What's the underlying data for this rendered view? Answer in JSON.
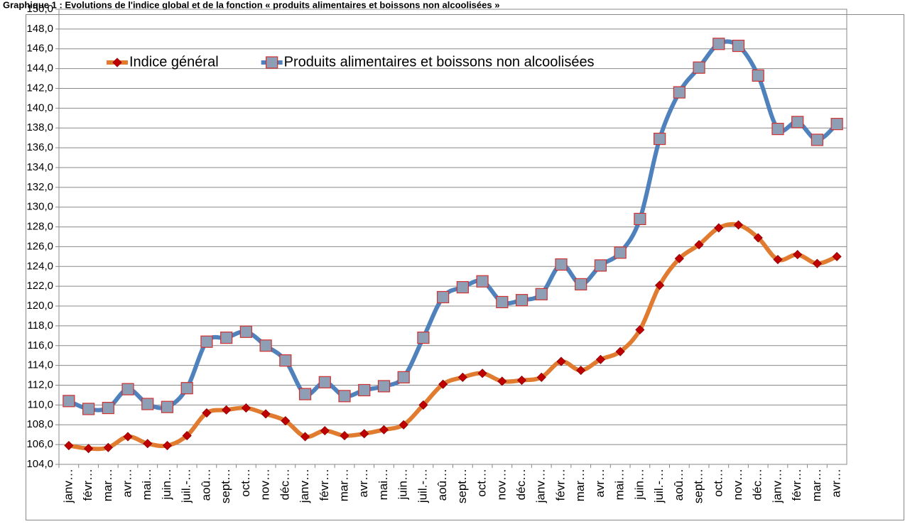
{
  "chart_data": {
    "type": "line",
    "title": "Graphique 1 : Evolutions de l'indice global et de la fonction « produits alimentaires et boissons non alcoolisées »",
    "categories": [
      "janv…",
      "févr…",
      "mar…",
      "avr…",
      "mai…",
      "juin…",
      "juil.-…",
      "aoû…",
      "sept…",
      "oct…",
      "nov…",
      "déc…",
      "janv…",
      "févr…",
      "mar…",
      "avr…",
      "mai…",
      "juin…",
      "juil.-…",
      "aoû…",
      "sept…",
      "oct…",
      "nov…",
      "déc…",
      "janv…",
      "févr…",
      "mar…",
      "avr…",
      "mai…",
      "juin…",
      "juil.-…",
      "aoû…",
      "sept…",
      "oct…",
      "nov…",
      "déc…",
      "janv…",
      "févr…",
      "mar…",
      "avr…"
    ],
    "series": [
      {
        "name": "Indice général",
        "color": "#e07b30",
        "marker": "diamond",
        "marker_color": "#c00000",
        "values": [
          105.9,
          105.6,
          105.7,
          106.8,
          106.1,
          105.9,
          106.9,
          109.2,
          109.5,
          109.7,
          109.1,
          108.4,
          106.8,
          107.4,
          106.9,
          107.1,
          107.5,
          108.0,
          110.0,
          112.1,
          112.8,
          113.2,
          112.4,
          112.5,
          112.8,
          114.4,
          113.5,
          114.6,
          115.4,
          117.6,
          122.1,
          124.8,
          126.2,
          127.9,
          128.2,
          126.9,
          124.7,
          125.2,
          124.3,
          125.0
        ]
      },
      {
        "name": "Produits alimentaires et boissons non alcoolisées",
        "color": "#4f81bd",
        "marker": "square",
        "marker_color": "#8e9fb5",
        "values": [
          110.4,
          109.6,
          109.7,
          111.6,
          110.1,
          109.8,
          111.7,
          116.4,
          116.8,
          117.4,
          116.0,
          114.5,
          111.1,
          112.3,
          110.9,
          111.5,
          111.9,
          112.8,
          116.8,
          120.9,
          121.9,
          122.5,
          120.4,
          120.6,
          121.2,
          124.2,
          122.2,
          124.1,
          125.4,
          128.8,
          136.9,
          141.6,
          144.1,
          146.5,
          146.3,
          143.3,
          137.9,
          138.6,
          136.8,
          138.4
        ]
      }
    ],
    "ylim": [
      104,
      150
    ],
    "yticks": [
      {
        "value": 104,
        "label": "104,0"
      },
      {
        "value": 106,
        "label": "106,0"
      },
      {
        "value": 108,
        "label": "108,0"
      },
      {
        "value": 110,
        "label": "110,0"
      },
      {
        "value": 112,
        "label": "112,0"
      },
      {
        "value": 114,
        "label": "114,0"
      },
      {
        "value": 116,
        "label": "116,0"
      },
      {
        "value": 118,
        "label": "118,0"
      },
      {
        "value": 120,
        "label": "120,0"
      },
      {
        "value": 122,
        "label": "122,0"
      },
      {
        "value": 124,
        "label": "124,0"
      },
      {
        "value": 126,
        "label": "126,0"
      },
      {
        "value": 128,
        "label": "128,0"
      },
      {
        "value": 130,
        "label": "130,0"
      },
      {
        "value": 132,
        "label": "132,0"
      },
      {
        "value": 134,
        "label": "134,0"
      },
      {
        "value": 136,
        "label": "136,0"
      },
      {
        "value": 138,
        "label": "138,0"
      },
      {
        "value": 140,
        "label": "140,0"
      },
      {
        "value": 142,
        "label": "142,0"
      },
      {
        "value": 144,
        "label": "144,0"
      },
      {
        "value": 146,
        "label": "146,0"
      },
      {
        "value": 148,
        "label": "148,0"
      },
      {
        "value": 150,
        "label": "150,0"
      }
    ],
    "grid": true,
    "smooth": true,
    "legend": "top-left"
  }
}
